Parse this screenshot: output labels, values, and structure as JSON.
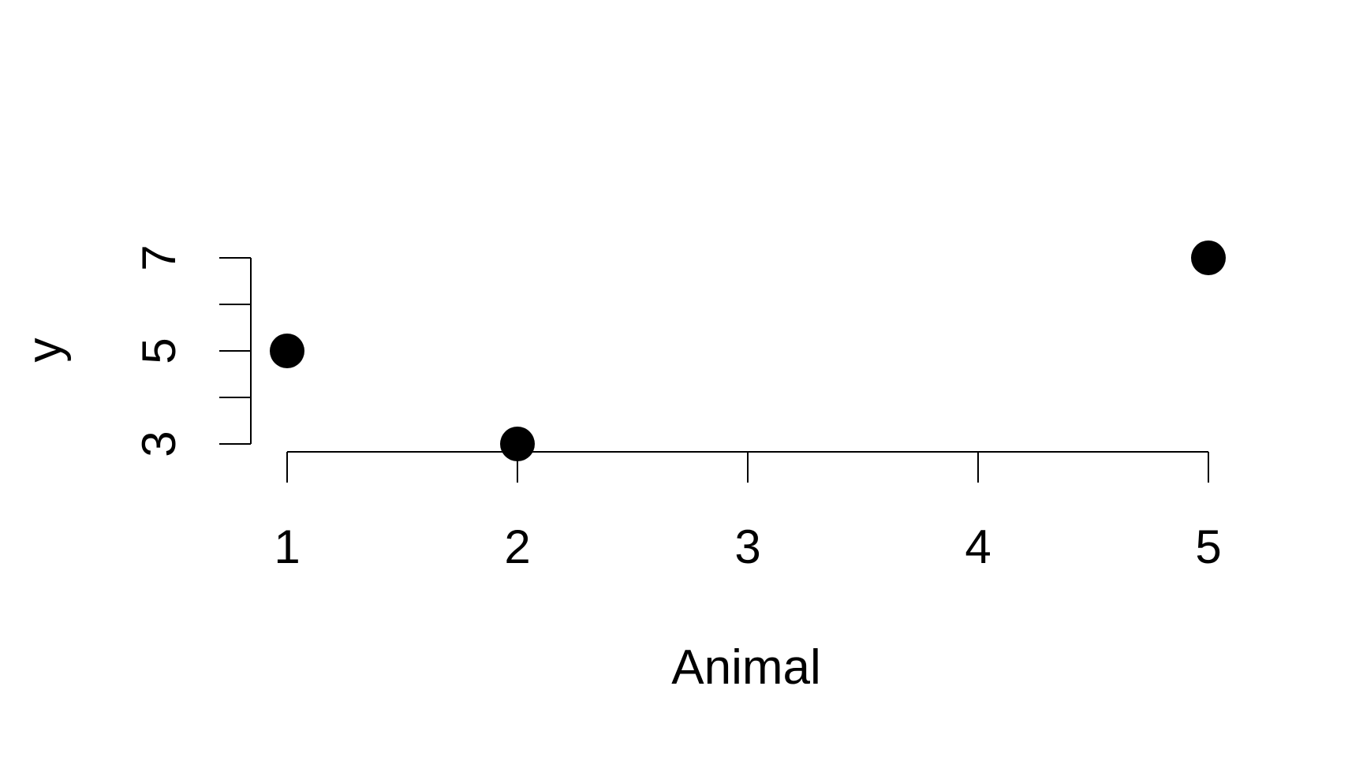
{
  "chart_data": {
    "type": "scatter",
    "title": "",
    "xlabel": "Animal",
    "ylabel": "y",
    "x_ticks": [
      1,
      2,
      3,
      4,
      5
    ],
    "y_ticks": [
      3,
      4,
      5,
      6,
      7
    ],
    "y_tick_labels": [
      "3",
      "",
      "5",
      "",
      "7"
    ],
    "xlim": [
      1,
      5
    ],
    "ylim": [
      3,
      7
    ],
    "grid": false,
    "points": [
      {
        "x": 1,
        "y": 5
      },
      {
        "x": 2,
        "y": 3
      },
      {
        "x": 5,
        "y": 7
      }
    ],
    "point_color": "#000000"
  }
}
